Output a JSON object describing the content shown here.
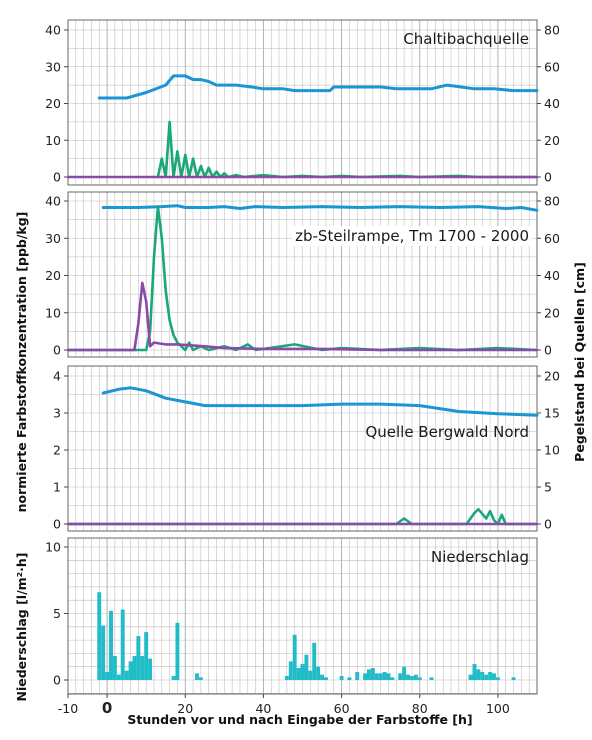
{
  "figure": {
    "ylabel_left_top": "normierte Farbstoffkonzentration [ppb/kg]",
    "ylabel_right_top": "Pegelstand  bei Quellen [cm]",
    "ylabel_left_bottom": "Niederschlag [l/m²·h]",
    "xlabel": "Stunden vor und nach Eingabe der Farbstoffe [h]"
  },
  "colors": {
    "level": "#1a96d2",
    "green": "#1aa878",
    "purple": "#8a4aa8",
    "rain": "#22bcc8",
    "grid": "#bcbcbc"
  },
  "chart_data": [
    {
      "type": "line",
      "title": "Chaltibachquelle",
      "xlim": [
        -10,
        110
      ],
      "ylim_left": [
        0,
        40
      ],
      "yticks_left": [
        "0",
        "10",
        "20",
        "30",
        "40"
      ],
      "ylim_right": [
        0,
        80
      ],
      "yticks_right": [
        "0",
        "20",
        "40",
        "60",
        "80"
      ],
      "series": [
        {
          "axis": "right",
          "color": "level",
          "points": [
            [
              -2,
              43
            ],
            [
              5,
              43
            ],
            [
              10,
              46
            ],
            [
              15,
              50
            ],
            [
              17,
              55
            ],
            [
              20,
              55
            ],
            [
              22,
              53
            ],
            [
              24,
              53
            ],
            [
              26,
              52
            ],
            [
              28,
              50
            ],
            [
              33,
              50
            ],
            [
              37,
              49
            ],
            [
              40,
              48
            ],
            [
              45,
              48
            ],
            [
              48,
              47
            ],
            [
              52,
              47
            ],
            [
              57,
              47
            ],
            [
              58,
              49
            ],
            [
              70,
              49
            ],
            [
              74,
              48
            ],
            [
              83,
              48
            ],
            [
              87,
              50
            ],
            [
              94,
              48
            ],
            [
              99,
              48
            ],
            [
              104,
              47
            ],
            [
              110,
              47
            ]
          ]
        },
        {
          "axis": "left",
          "color": "green",
          "points": [
            [
              13,
              0
            ],
            [
              14,
              5
            ],
            [
              15,
              0
            ],
            [
              16,
              15
            ],
            [
              17,
              0
            ],
            [
              18,
              7
            ],
            [
              19,
              0
            ],
            [
              20,
              6
            ],
            [
              21,
              0
            ],
            [
              22,
              5
            ],
            [
              23,
              0
            ],
            [
              24,
              3
            ],
            [
              25,
              0
            ],
            [
              26,
              2.5
            ],
            [
              27,
              0
            ],
            [
              28,
              1.5
            ],
            [
              29,
              0
            ],
            [
              30,
              1
            ],
            [
              31,
              0
            ],
            [
              33,
              0.5
            ],
            [
              35,
              0
            ],
            [
              40,
              0.5
            ],
            [
              45,
              0
            ],
            [
              50,
              0.3
            ],
            [
              55,
              0
            ],
            [
              60,
              0.3
            ],
            [
              65,
              0
            ],
            [
              75,
              0.3
            ],
            [
              80,
              0
            ],
            [
              90,
              0.3
            ],
            [
              95,
              0
            ],
            [
              110,
              0
            ]
          ]
        },
        {
          "axis": "left",
          "color": "purple",
          "points": [
            [
              -10,
              0
            ],
            [
              110,
              0
            ]
          ]
        }
      ]
    },
    {
      "type": "line",
      "title": "zb-Steilrampe, Tm 1700 - 2000",
      "xlim": [
        -10,
        110
      ],
      "ylim_left": [
        0,
        40
      ],
      "yticks_left": [
        "0",
        "10",
        "20",
        "30",
        "40"
      ],
      "ylim_right": [
        0,
        80
      ],
      "yticks_right": [
        "0",
        "20",
        "40",
        "60",
        "80"
      ],
      "series": [
        {
          "axis": "right",
          "color": "level",
          "points": [
            [
              -1,
              76.5
            ],
            [
              8,
              76.5
            ],
            [
              14,
              77
            ],
            [
              18,
              77.5
            ],
            [
              20,
              76.5
            ],
            [
              26,
              76.5
            ],
            [
              30,
              77
            ],
            [
              34,
              76
            ],
            [
              38,
              77
            ],
            [
              45,
              76.5
            ],
            [
              55,
              77
            ],
            [
              65,
              76.5
            ],
            [
              75,
              77
            ],
            [
              85,
              76.5
            ],
            [
              95,
              77
            ],
            [
              102,
              76
            ],
            [
              106,
              76.5
            ],
            [
              110,
              75
            ]
          ]
        },
        {
          "axis": "left",
          "color": "green",
          "points": [
            [
              -10,
              0
            ],
            [
              10,
              0
            ],
            [
              11,
              5
            ],
            [
              12,
              25
            ],
            [
              13,
              38.5
            ],
            [
              14,
              30
            ],
            [
              15,
              16
            ],
            [
              16,
              8
            ],
            [
              17,
              4
            ],
            [
              18,
              2
            ],
            [
              19,
              1
            ],
            [
              20,
              0
            ],
            [
              21,
              2
            ],
            [
              22,
              0
            ],
            [
              24,
              1
            ],
            [
              26,
              0
            ],
            [
              30,
              1
            ],
            [
              33,
              0
            ],
            [
              36,
              1.5
            ],
            [
              38,
              0
            ],
            [
              48,
              1.5
            ],
            [
              55,
              0
            ],
            [
              60,
              0.5
            ],
            [
              70,
              0
            ],
            [
              80,
              0.5
            ],
            [
              90,
              0
            ],
            [
              100,
              0.5
            ],
            [
              110,
              0
            ]
          ]
        },
        {
          "axis": "left",
          "color": "purple",
          "points": [
            [
              -10,
              0
            ],
            [
              7,
              0
            ],
            [
              8,
              7
            ],
            [
              9,
              18
            ],
            [
              10,
              13
            ],
            [
              11,
              1
            ],
            [
              12,
              2
            ],
            [
              15,
              1.5
            ],
            [
              18,
              1.5
            ],
            [
              25,
              1
            ],
            [
              30,
              0.5
            ],
            [
              40,
              0.3
            ],
            [
              55,
              0.3
            ],
            [
              70,
              0
            ],
            [
              110,
              0
            ]
          ]
        }
      ]
    },
    {
      "type": "line",
      "title": "Quelle Bergwald Nord",
      "xlim": [
        -10,
        110
      ],
      "ylim_left": [
        0,
        4
      ],
      "yticks_left": [
        "0",
        "1",
        "2",
        "3",
        "4"
      ],
      "ylim_right": [
        0,
        20
      ],
      "yticks_right": [
        "0",
        "5",
        "10",
        "15",
        "20"
      ],
      "series": [
        {
          "axis": "right",
          "color": "level",
          "points": [
            [
              -1,
              17.7
            ],
            [
              3,
              18.2
            ],
            [
              6,
              18.4
            ],
            [
              10,
              18
            ],
            [
              15,
              17
            ],
            [
              20,
              16.5
            ],
            [
              25,
              16
            ],
            [
              30,
              16
            ],
            [
              40,
              16
            ],
            [
              50,
              16
            ],
            [
              60,
              16.2
            ],
            [
              70,
              16.2
            ],
            [
              80,
              16
            ],
            [
              90,
              15.2
            ],
            [
              100,
              14.9
            ],
            [
              110,
              14.7
            ]
          ]
        },
        {
          "axis": "left",
          "color": "green",
          "points": [
            [
              -10,
              0
            ],
            [
              74,
              0
            ],
            [
              76,
              0.15
            ],
            [
              78,
              0
            ],
            [
              92,
              0
            ],
            [
              94,
              0.3
            ],
            [
              95,
              0.4
            ],
            [
              97,
              0.15
            ],
            [
              98,
              0.35
            ],
            [
              99,
              0.1
            ],
            [
              100,
              0
            ],
            [
              101,
              0.25
            ],
            [
              102,
              0
            ],
            [
              110,
              0
            ]
          ]
        },
        {
          "axis": "left",
          "color": "purple",
          "points": [
            [
              -10,
              0
            ],
            [
              110,
              0
            ]
          ]
        }
      ]
    },
    {
      "type": "bar",
      "title": "Niederschlag",
      "xlim": [
        -10,
        110
      ],
      "ylim_left": [
        0,
        10
      ],
      "yticks_left": [
        "0",
        "5",
        "10"
      ],
      "x": [
        -2,
        -1,
        0,
        1,
        2,
        3,
        4,
        5,
        6,
        7,
        8,
        9,
        10,
        11,
        17,
        18,
        23,
        24,
        46,
        47,
        48,
        49,
        50,
        51,
        52,
        53,
        54,
        55,
        56,
        60,
        62,
        64,
        66,
        67,
        68,
        69,
        70,
        71,
        72,
        73,
        75,
        76,
        77,
        78,
        79,
        80,
        83,
        93,
        94,
        95,
        96,
        97,
        98,
        99,
        100,
        104
      ],
      "values": [
        6.6,
        4.1,
        0.6,
        5.2,
        1.8,
        0.4,
        5.3,
        0.7,
        1.4,
        1.8,
        3.3,
        1.8,
        3.6,
        1.6,
        0.3,
        4.3,
        0.5,
        0.2,
        0.3,
        1.4,
        3.4,
        0.9,
        1.2,
        1.9,
        0.7,
        2.8,
        1.0,
        0.4,
        0.2,
        0.3,
        0.2,
        0.6,
        0.5,
        0.8,
        0.9,
        0.5,
        0.5,
        0.6,
        0.5,
        0.2,
        0.5,
        1.0,
        0.4,
        0.3,
        0.4,
        0.2,
        0.2,
        0.4,
        1.2,
        0.8,
        0.6,
        0.4,
        0.6,
        0.5,
        0.2,
        0.2
      ],
      "xticks": [
        "-10",
        "0",
        "20",
        "40",
        "60",
        "80",
        "100"
      ]
    }
  ]
}
